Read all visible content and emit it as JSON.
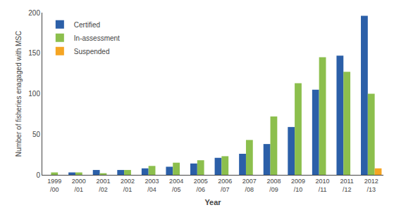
{
  "chart_data": {
    "type": "bar",
    "categories": [
      "1999\n/00",
      "2000\n/01",
      "2001\n/02",
      "2002\n/01",
      "2003\n/04",
      "2004\n/05",
      "2005\n/06",
      "2006\n/07",
      "2007\n/08",
      "2008\n/09",
      "2009\n/10",
      "2010\n/11",
      "2011\n/12",
      "2012\n/13"
    ],
    "series": [
      {
        "name": "Certified",
        "color": "#2B5FA8",
        "values": [
          0,
          3,
          6,
          6,
          8,
          10,
          14,
          21,
          26,
          38,
          59,
          105,
          147,
          196
        ]
      },
      {
        "name": "In-assessment",
        "color": "#8CBF4D",
        "values": [
          3,
          3,
          2,
          6,
          11,
          15,
          18,
          23,
          43,
          72,
          113,
          145,
          127,
          100
        ]
      },
      {
        "name": "Suspended",
        "color": "#F5A523",
        "values": [
          0,
          0,
          0,
          0,
          0,
          0,
          0,
          0,
          0,
          0,
          0,
          0,
          0,
          8
        ]
      }
    ],
    "xlabel": "Year",
    "ylabel": "Number of fisheries enagaged with MSC",
    "ylim": [
      0,
      200
    ],
    "yticks": [
      0,
      50,
      100,
      150,
      200
    ],
    "grid": false,
    "legend": "upper left"
  }
}
